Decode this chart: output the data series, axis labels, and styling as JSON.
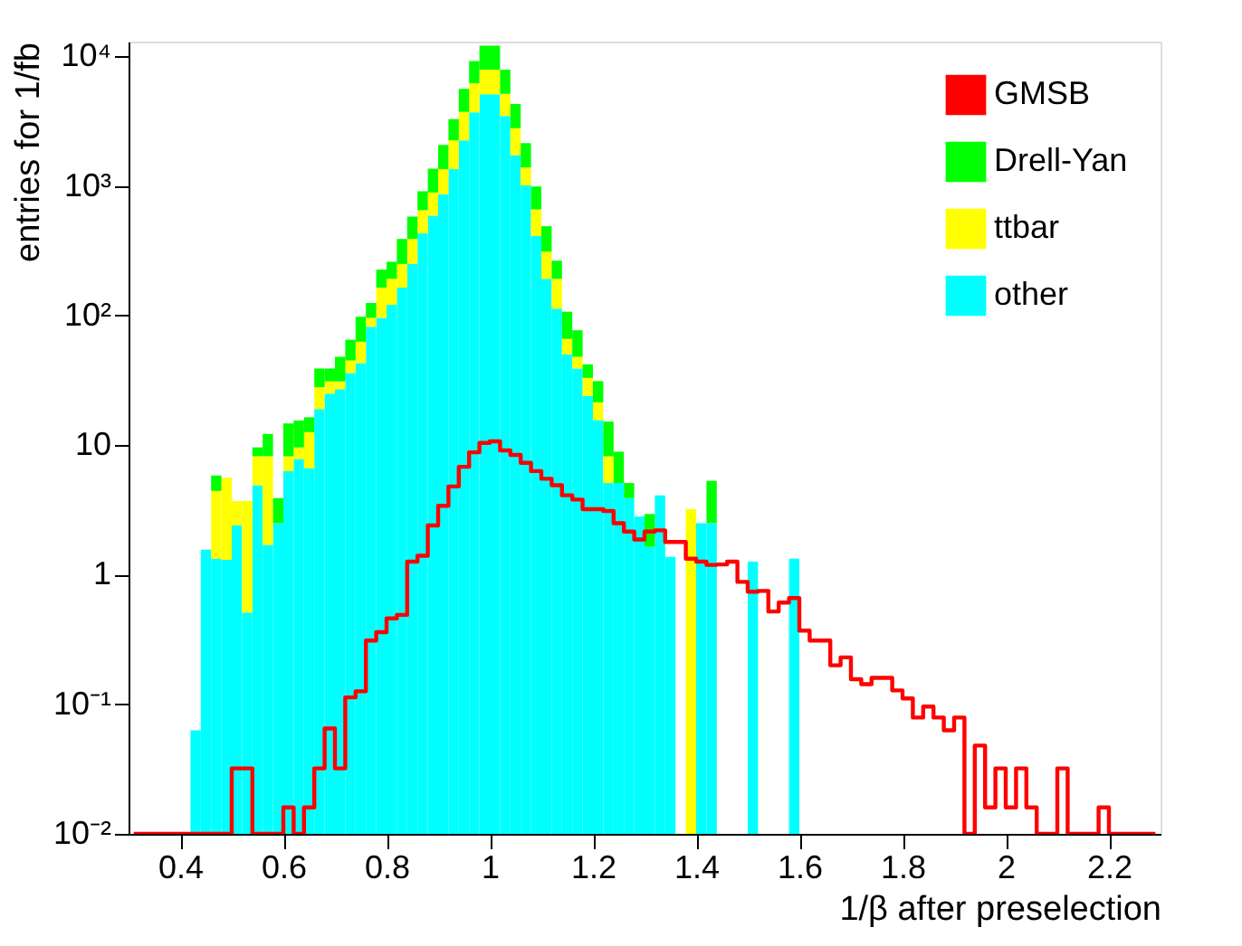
{
  "chart_data": {
    "type": "bar",
    "xlabel": "1/β after preselection",
    "ylabel": "entries for 1/fb",
    "x": [
      0.31,
      0.33,
      0.35,
      0.37,
      0.39,
      0.41,
      0.43,
      0.45,
      0.47,
      0.49,
      0.51,
      0.53,
      0.55,
      0.57,
      0.59,
      0.61,
      0.63,
      0.65,
      0.67,
      0.69,
      0.71,
      0.73,
      0.75,
      0.77,
      0.79,
      0.81,
      0.83,
      0.85,
      0.87,
      0.89,
      0.91,
      0.93,
      0.95,
      0.97,
      0.99,
      1.01,
      1.03,
      1.05,
      1.07,
      1.09,
      1.11,
      1.13,
      1.15,
      1.17,
      1.19,
      1.21,
      1.23,
      1.25,
      1.27,
      1.29,
      1.31,
      1.33,
      1.35,
      1.37,
      1.39,
      1.41,
      1.43,
      1.45,
      1.47,
      1.49,
      1.51,
      1.53,
      1.55,
      1.57,
      1.59,
      1.61,
      1.63,
      1.65,
      1.67,
      1.69,
      1.71,
      1.73,
      1.75,
      1.77,
      1.79,
      1.81,
      1.83,
      1.85,
      1.87,
      1.89,
      1.91,
      1.93,
      1.95,
      1.97,
      1.99,
      2.01,
      2.03,
      2.05,
      2.07,
      2.09,
      2.11,
      2.13,
      2.15,
      2.17,
      2.19,
      2.21,
      2.23,
      2.25,
      2.27,
      2.29
    ],
    "stacked": true,
    "log": "y",
    "legend": "top right",
    "xlim": [
      0.3,
      2.3
    ],
    "xticks": [
      0.4,
      0.6,
      0.8,
      1,
      1.2,
      1.4,
      1.6,
      1.8,
      2,
      2.2
    ],
    "ylim": [
      0.01,
      13000
    ],
    "yticks": [
      {
        "value": 0.01,
        "label": "10⁻²"
      },
      {
        "value": 0.1,
        "label": "10⁻¹"
      },
      1,
      10,
      {
        "value": 100,
        "label": "10²"
      },
      {
        "value": 1000,
        "label": "10³"
      },
      {
        "value": 10000,
        "label": "10⁴"
      }
    ],
    "series": [
      {
        "name": "GMSB",
        "type": "step",
        "color": "#ff0000",
        "values": [
          0.01,
          0.01,
          0.01,
          0.01,
          0.01,
          0.01,
          0.01,
          0.01,
          0.01,
          0.01,
          0.032,
          0.032,
          0.01,
          0.01,
          0.01,
          0.016,
          0.01,
          0.016,
          0.032,
          0.065,
          0.032,
          0.113,
          0.126,
          0.31,
          0.36,
          0.46,
          0.49,
          1.26,
          1.4,
          2.4,
          3.4,
          4.8,
          6.8,
          8.8,
          10.4,
          10.7,
          9.1,
          8.4,
          7.3,
          6.3,
          5.5,
          4.9,
          4.1,
          3.8,
          3.2,
          3.2,
          3.1,
          2.5,
          2.15,
          1.87,
          2.15,
          2.2,
          1.79,
          1.79,
          1.33,
          1.26,
          1.19,
          1.2,
          1.26,
          0.88,
          0.74,
          0.75,
          0.52,
          0.61,
          0.66,
          0.37,
          0.31,
          0.31,
          0.2,
          0.23,
          0.156,
          0.143,
          0.16,
          0.16,
          0.128,
          0.111,
          0.079,
          0.096,
          0.079,
          0.063,
          0.079,
          0.01,
          0.048,
          0.016,
          0.032,
          0.016,
          0.032,
          0.016,
          0.01,
          0.01,
          0.032,
          0.01,
          0.01,
          0.01,
          0.016,
          0.01,
          0.01,
          0.01,
          0.01,
          0.01
        ]
      },
      {
        "name": "other",
        "color": "#00ffff",
        "values": [
          null,
          null,
          null,
          null,
          null,
          null,
          0.063,
          1.56,
          1.33,
          1.3,
          2.4,
          0.51,
          4.9,
          1.7,
          2.5,
          6.3,
          7.8,
          6.6,
          19,
          25,
          27,
          36,
          43,
          82,
          96,
          121,
          164,
          250,
          430,
          590,
          860,
          1350,
          2250,
          3700,
          5100,
          5100,
          3470,
          1730,
          1010,
          410,
          192,
          113,
          50,
          39,
          24,
          15.6,
          5.1,
          5.1,
          3.9,
          2.8,
          1.64,
          4.1,
          1.37,
          null,
          null,
          2.5,
          2.5,
          null,
          null,
          null,
          1.26,
          null,
          null,
          null,
          1.33,
          null,
          null,
          null,
          null,
          null,
          null,
          null,
          null,
          null,
          null,
          null,
          null,
          null,
          null,
          null,
          null,
          null,
          null,
          null,
          null,
          null,
          null,
          null,
          null,
          null,
          null,
          null,
          null,
          null,
          null,
          null,
          null,
          null,
          null,
          null
        ]
      },
      {
        "name": "ttbar",
        "color": "#ffff00",
        "values": [
          null,
          null,
          null,
          null,
          null,
          null,
          null,
          null,
          3.1,
          4.3,
          1.3,
          3.2,
          3.3,
          6.5,
          null,
          1.9,
          1.8,
          6,
          9,
          6,
          4,
          9,
          20,
          14,
          68,
          71,
          86,
          140,
          220,
          300,
          490,
          900,
          1480,
          2500,
          2800,
          2800,
          1670,
          1060,
          380,
          250,
          119,
          79,
          16,
          9,
          9,
          5.8,
          3.1,
          null,
          null,
          null,
          null,
          null,
          null,
          null,
          3.2,
          null,
          null,
          null,
          null,
          null,
          null,
          null,
          null,
          null,
          null,
          null,
          null,
          null,
          null,
          null,
          null,
          null,
          null,
          null,
          null,
          null,
          null,
          null,
          null,
          null,
          null,
          null,
          null,
          null,
          null,
          null,
          null,
          null,
          null,
          null,
          null,
          null,
          null,
          null,
          null,
          null,
          null,
          null,
          null,
          null
        ]
      },
      {
        "name": "Drell-Yan",
        "color": "#00ff00",
        "values": [
          null,
          null,
          null,
          null,
          null,
          null,
          null,
          null,
          1.4,
          null,
          null,
          null,
          1.4,
          4.0,
          1.4,
          6.5,
          5.9,
          3.8,
          11,
          8,
          17,
          20,
          35,
          29,
          62,
          68,
          140,
          190,
          260,
          470,
          720,
          1030,
          1880,
          3000,
          4200,
          4200,
          2750,
          1500,
          750,
          330,
          178,
          73,
          41,
          29,
          9,
          9.8,
          7.0,
          3.8,
          1.2,
          null,
          1.3,
          null,
          null,
          null,
          null,
          null,
          2.8,
          null,
          null,
          null,
          null,
          null,
          null,
          null,
          null,
          null,
          null,
          null,
          null,
          null,
          null,
          null,
          null,
          null,
          null,
          null,
          null,
          null,
          null,
          null,
          null,
          null,
          null,
          null,
          null,
          null,
          null,
          null,
          null,
          null,
          null,
          null,
          null,
          null,
          null,
          null,
          null,
          null,
          null,
          null
        ]
      }
    ]
  }
}
